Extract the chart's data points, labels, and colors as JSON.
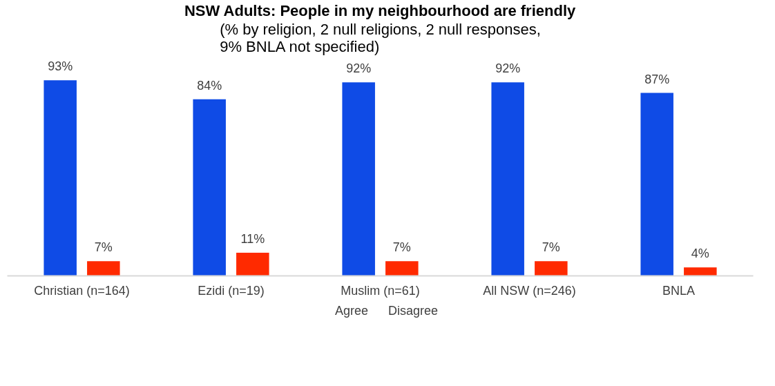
{
  "chart_data": {
    "type": "bar",
    "title": "NSW Adults: People in my neighbourhood are friendly",
    "subtitle": "(% by religion, 2 null religions, 2 null responses,\n9% BNLA not specified)",
    "categories": [
      "Christian (n=164)",
      "Ezidi (n=19)",
      "Muslim (n=61)",
      "All NSW (n=246)",
      "BNLA"
    ],
    "series": [
      {
        "name": "Agree",
        "color": "#0f4be6",
        "values": [
          93,
          84,
          92,
          92,
          87
        ],
        "value_labels": [
          "93%",
          "84%",
          "92%",
          "92%",
          "87%"
        ]
      },
      {
        "name": "Disagree",
        "color": "#ff2a00",
        "values": [
          7,
          11,
          7,
          7,
          4
        ],
        "value_labels": [
          "7%",
          "11%",
          "7%",
          "7%",
          "4%"
        ]
      }
    ],
    "legend": "bottom"
  }
}
